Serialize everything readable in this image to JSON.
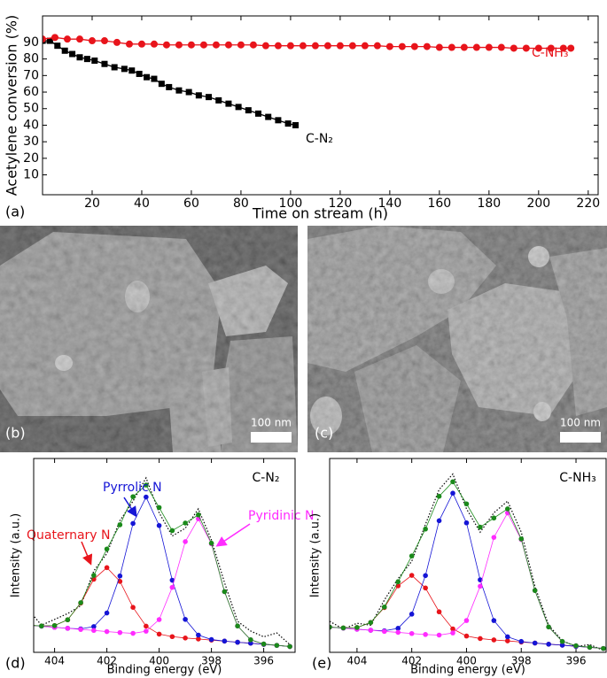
{
  "chart_data": [
    {
      "type": "line",
      "panel_label": "(a)",
      "xlabel": "Time on stream (h)",
      "ylabel": "Acetylene conversion (%)",
      "xlim": [
        0,
        224
      ],
      "ylim": [
        -2,
        106
      ],
      "xticks": [
        20,
        40,
        60,
        80,
        100,
        120,
        140,
        160,
        180,
        200,
        220
      ],
      "yticks": [
        10,
        20,
        30,
        40,
        50,
        60,
        70,
        80,
        90
      ],
      "series": [
        {
          "name": "C-N₂",
          "color": "#000000",
          "marker": "square",
          "x": [
            0,
            3,
            6,
            9,
            12,
            15,
            18,
            21,
            25,
            29,
            33,
            36,
            39,
            42,
            45,
            48,
            51,
            55,
            59,
            63,
            67,
            71,
            75,
            79,
            83,
            87,
            91,
            95,
            99,
            102
          ],
          "values": [
            91,
            91,
            88,
            85,
            83,
            81,
            80,
            79,
            77,
            75,
            74,
            73,
            71,
            69,
            68,
            65,
            63,
            61,
            60,
            58,
            57,
            55,
            53,
            51,
            49,
            47,
            45,
            43,
            41,
            40
          ]
        },
        {
          "name": "C-NH₃",
          "color": "#e8141b",
          "marker": "circle",
          "x": [
            0,
            5,
            10,
            15,
            20,
            25,
            30,
            35,
            40,
            45,
            50,
            55,
            60,
            65,
            70,
            75,
            80,
            85,
            90,
            95,
            100,
            105,
            110,
            115,
            120,
            125,
            130,
            135,
            140,
            145,
            150,
            155,
            160,
            165,
            170,
            175,
            180,
            185,
            190,
            195,
            200,
            205,
            210,
            213
          ],
          "values": [
            92,
            93,
            92,
            92,
            91,
            91,
            90,
            89,
            89,
            89,
            88.5,
            88.5,
            88.5,
            88.5,
            88.5,
            88.5,
            88.5,
            88.5,
            88,
            88,
            88,
            88,
            88,
            88,
            88,
            88,
            88,
            88,
            87.5,
            87.5,
            87.5,
            87.5,
            87,
            87,
            87,
            87,
            87,
            87,
            86.5,
            86.5,
            86.5,
            86.5,
            86.5,
            86.5
          ]
        }
      ]
    },
    {
      "type": "line",
      "panel_label": "(d)",
      "title": "C-N₂",
      "xlabel": "Binding energy (eV)",
      "ylabel": "Intensity (a.u.)",
      "xlim": [
        404.8,
        394.8
      ],
      "ylim": [
        0,
        100
      ],
      "xticks": [
        404,
        402,
        400,
        398,
        396
      ],
      "x": [
        405,
        404.5,
        404,
        403.5,
        403,
        402.5,
        402,
        401.5,
        401,
        400.5,
        400,
        399.5,
        399,
        398.5,
        398,
        397.5,
        397,
        396.5,
        396,
        395.5,
        395
      ],
      "series": [
        {
          "color": "#000000",
          "linestyle": "dotted",
          "values": [
            22,
            14,
            17,
            20,
            24,
            42,
            51,
            68,
            78,
            90,
            72,
            60,
            64,
            74,
            58,
            36,
            16,
            11,
            8,
            10,
            4
          ]
        },
        {
          "name": "Quaternary N",
          "color": "#e8141b",
          "marker": "dot",
          "values": [
            14.0,
            13.6,
            13.8,
            16.8,
            25.4,
            37.7,
            43.7,
            36.6,
            23.2,
            13.5,
            9.4,
            8.1,
            7.4,
            6.9,
            6.3,
            5.8,
            5.2,
            4.7,
            4.1,
            3.6,
            3.0
          ]
        },
        {
          "name": "Pyrrolic N",
          "color": "#1515d6",
          "marker": "dot",
          "values": [
            14.0,
            13.5,
            12.9,
            12.4,
            12.1,
            13.3,
            20.3,
            39.4,
            66.5,
            80.1,
            65.4,
            37.2,
            17.0,
            8.9,
            6.6,
            5.8,
            5.2,
            4.7,
            4.1,
            3.6,
            3.0
          ]
        },
        {
          "name": "Pyridinic N",
          "color": "#ff2bff",
          "marker": "dot",
          "values": [
            14.0,
            13.5,
            12.9,
            12.4,
            11.8,
            11.3,
            10.7,
            10.2,
            9.8,
            10.9,
            16.9,
            33.5,
            57.1,
            68.9,
            56.0,
            31.3,
            13.6,
            6.5,
            4.3,
            3.6,
            3.0
          ]
        },
        {
          "color": "#1a8a1a",
          "marker": "dot",
          "values": [
            14.0,
            13.6,
            13.8,
            16.8,
            25.6,
            39.7,
            53.3,
            65.8,
            80.3,
            86.3,
            74.7,
            62.8,
            66.7,
            70.9,
            56.3,
            31.3,
            13.6,
            6.5,
            4.3,
            3.6,
            3.0
          ]
        }
      ]
    },
    {
      "type": "line",
      "panel_label": "(e)",
      "title": "C-NH₃",
      "xlabel": "Binding energy (eV)",
      "ylabel": "Intensity (a.u.)",
      "xlim": [
        405,
        394.9
      ],
      "ylim": [
        0,
        100
      ],
      "xticks": [
        404,
        402,
        400,
        398,
        396
      ],
      "x": [
        405,
        404.5,
        404,
        403.5,
        403,
        402.5,
        402,
        401.5,
        401,
        400.5,
        400,
        399.5,
        399,
        398.5,
        398,
        397.5,
        397,
        396.5,
        396,
        395.5,
        395
      ],
      "series": [
        {
          "color": "#000000",
          "linestyle": "dotted",
          "values": [
            16,
            12,
            15,
            14,
            27,
            38,
            47,
            66,
            84,
            92,
            74,
            62,
            72,
            78,
            62,
            34,
            14,
            6,
            3,
            4,
            1
          ]
        },
        {
          "color": "#e8141b",
          "marker": "dot",
          "values": [
            13.0,
            12.6,
            12.8,
            15.4,
            23.1,
            34.3,
            39.7,
            33.2,
            20.9,
            12.1,
            8.4,
            7.1,
            6.4,
            5.9,
            5.3,
            4.8,
            4.2,
            3.7,
            3.1,
            2.6,
            2.0
          ]
        },
        {
          "color": "#1515d6",
          "marker": "dot",
          "values": [
            13.0,
            12.5,
            11.9,
            11.4,
            11.1,
            12.4,
            19.7,
            39.6,
            67.9,
            82.1,
            66.8,
            37.4,
            16.4,
            8.0,
            5.6,
            4.8,
            4.2,
            3.7,
            3.1,
            2.6,
            2.0
          ]
        },
        {
          "color": "#ff2bff",
          "marker": "dot",
          "values": [
            13.0,
            12.5,
            11.9,
            11.4,
            10.8,
            10.3,
            9.7,
            9.2,
            8.9,
            10.0,
            16.4,
            34.1,
            59.3,
            71.9,
            58.2,
            31.9,
            13.1,
            5.6,
            3.4,
            2.6,
            2.0
          ]
        },
        {
          "color": "#1a8a1a",
          "marker": "dot",
          "values": [
            13.0,
            12.6,
            12.8,
            15.4,
            23.4,
            36.4,
            49.7,
            63.6,
            80.5,
            88.0,
            76.6,
            64.6,
            69.3,
            74.0,
            58.5,
            31.9,
            13.1,
            5.6,
            3.4,
            2.6,
            2.0
          ]
        }
      ]
    }
  ],
  "images": [
    {
      "panel_label": "(b)",
      "scale_bar": "100 nm"
    },
    {
      "panel_label": "(c)",
      "scale_bar": "100 nm"
    }
  ]
}
